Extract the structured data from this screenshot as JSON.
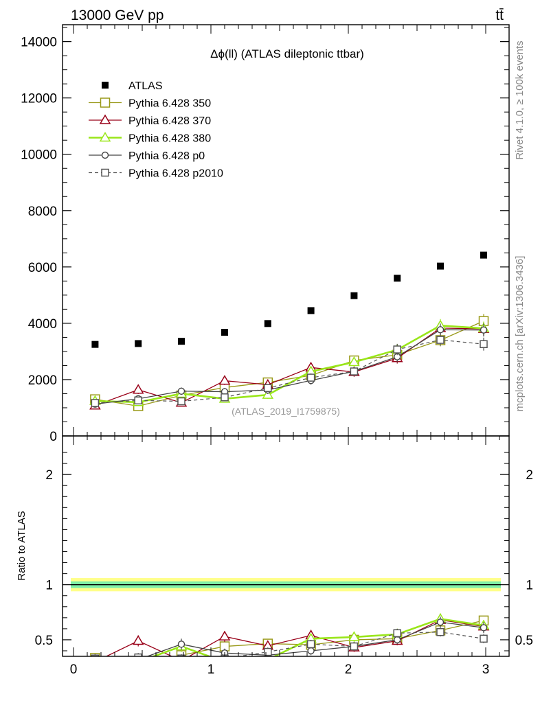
{
  "header": {
    "left": "13000 GeV pp",
    "right": "tt̄"
  },
  "side_labels": {
    "rivet": "Rivet 4.1.0, ≥ 100k events",
    "mcplots": "mcplots.cern.ch [arXiv:1306.3436]"
  },
  "colors": {
    "atlas": "#000000",
    "p350": "#999918",
    "p370": "#990018",
    "p380": "#99e619",
    "p0": "#444444",
    "p2010": "#555555",
    "band_inner": "#7ff0a8",
    "band_outer": "#ffff8a"
  },
  "chart_data": [
    {
      "type": "scatter",
      "panel": "main",
      "title": "Δϕ(ll) (ATLAS dileptonic ttbar)",
      "analysis_tag": "(ATLAS_2019_I1759875)",
      "xlabel": "",
      "ylabel": "",
      "xlim": [
        -0.08,
        3.17
      ],
      "ylim": [
        0,
        14600
      ],
      "yticks": [
        0,
        2000,
        4000,
        6000,
        8000,
        10000,
        12000,
        14000
      ],
      "ytick_labels": [
        "0",
        "2000",
        "4000",
        "6000",
        "8000",
        "10000",
        "12000",
        "14000"
      ],
      "x": [
        0.157,
        0.471,
        0.785,
        1.1,
        1.414,
        1.728,
        2.042,
        2.356,
        2.67,
        2.985
      ],
      "series": [
        {
          "name": "ATLAS",
          "key": "atlas",
          "style": "data",
          "values": [
            3250,
            3280,
            3360,
            3680,
            3990,
            4450,
            4980,
            5600,
            6030,
            6420
          ]
        },
        {
          "name": "Pythia 6.428 350",
          "key": "p350",
          "style": "square-open",
          "values": [
            1300,
            1060,
            1440,
            1720,
            1900,
            2150,
            2680,
            2880,
            3400,
            4080
          ],
          "errors": [
            130,
            110,
            130,
            130,
            150,
            160,
            170,
            200,
            220,
            250
          ]
        },
        {
          "name": "Pythia 6.428 370",
          "key": "p370",
          "style": "triangle-open",
          "values": [
            1080,
            1640,
            1180,
            1960,
            1820,
            2430,
            2270,
            2760,
            3830,
            3800
          ],
          "errors": [
            120,
            150,
            120,
            150,
            150,
            170,
            170,
            190,
            230,
            240
          ]
        },
        {
          "name": "Pythia 6.428 380",
          "key": "p380",
          "style": "triangle-open-thick",
          "values": [
            1240,
            1200,
            1500,
            1320,
            1460,
            2290,
            2620,
            3060,
            3920,
            3820
          ],
          "errors": [
            120,
            120,
            130,
            130,
            140,
            160,
            180,
            200,
            230,
            240
          ]
        },
        {
          "name": "Pythia 6.428 p0",
          "key": "p0",
          "style": "circle-open",
          "values": [
            1130,
            1320,
            1590,
            1570,
            1630,
            1970,
            2290,
            2810,
            3770,
            3760
          ],
          "errors": [
            110,
            120,
            130,
            130,
            140,
            150,
            160,
            190,
            220,
            230
          ]
        },
        {
          "name": "Pythia 6.428 p2010",
          "key": "p2010",
          "style": "square-open-dashed",
          "values": [
            1170,
            1260,
            1230,
            1370,
            1700,
            2070,
            2290,
            3070,
            3410,
            3260
          ],
          "errors": [
            110,
            120,
            120,
            130,
            140,
            150,
            160,
            200,
            210,
            230
          ]
        }
      ]
    },
    {
      "type": "scatter",
      "panel": "ratio",
      "ylabel": "Ratio to ATLAS",
      "xlim": [
        -0.08,
        3.17
      ],
      "ylim": [
        0.35,
        2.35
      ],
      "yticks": [
        0.5,
        1,
        2
      ],
      "ytick_labels": [
        "0.5",
        "1",
        "2"
      ],
      "xticks": [
        0,
        1,
        2,
        3
      ],
      "xtick_labels": [
        "0",
        "1",
        "2",
        "3"
      ],
      "reference": 1,
      "band_inner": [
        0.97,
        1.03
      ],
      "band_outer": [
        0.94,
        1.06
      ],
      "x": [
        0.157,
        0.471,
        0.785,
        1.1,
        1.414,
        1.728,
        2.042,
        2.356,
        2.67,
        2.985
      ],
      "series": [
        {
          "name": "Pythia 6.428 350",
          "key": "p350",
          "style": "square-open",
          "values": [
            0.335,
            0.28,
            0.36,
            0.44,
            0.465,
            0.455,
            0.5,
            0.51,
            0.585,
            0.675
          ],
          "errors": [
            0.04,
            0.04,
            0.04,
            0.04,
            0.04,
            0.04,
            0.04,
            0.04,
            0.04,
            0.04
          ]
        },
        {
          "name": "Pythia 6.428 370",
          "key": "p370",
          "style": "triangle-open",
          "values": [
            0.3,
            0.49,
            0.31,
            0.53,
            0.445,
            0.54,
            0.43,
            0.49,
            0.68,
            0.62
          ],
          "errors": [
            0.04,
            0.05,
            0.04,
            0.05,
            0.04,
            0.05,
            0.04,
            0.04,
            0.05,
            0.05
          ]
        },
        {
          "name": "Pythia 6.428 380",
          "key": "p380",
          "style": "triangle-open-thick",
          "values": [
            0.31,
            0.3,
            0.44,
            0.3,
            0.32,
            0.51,
            0.525,
            0.55,
            0.69,
            0.63
          ],
          "errors": [
            0.04,
            0.04,
            0.05,
            0.04,
            0.04,
            0.05,
            0.05,
            0.05,
            0.05,
            0.05
          ]
        },
        {
          "name": "Pythia 6.428 p0",
          "key": "p0",
          "style": "circle-open",
          "values": [
            0.33,
            0.32,
            0.46,
            0.38,
            0.36,
            0.4,
            0.44,
            0.5,
            0.66,
            0.61
          ],
          "errors": [
            0.04,
            0.04,
            0.05,
            0.04,
            0.04,
            0.04,
            0.04,
            0.04,
            0.05,
            0.05
          ]
        },
        {
          "name": "Pythia 6.428 p2010",
          "key": "p2010",
          "style": "square-open-dashed",
          "values": [
            0.33,
            0.34,
            0.33,
            0.33,
            0.39,
            0.46,
            0.44,
            0.56,
            0.57,
            0.51
          ],
          "errors": [
            0.04,
            0.04,
            0.04,
            0.04,
            0.04,
            0.04,
            0.04,
            0.04,
            0.04,
            0.04
          ]
        }
      ]
    }
  ]
}
